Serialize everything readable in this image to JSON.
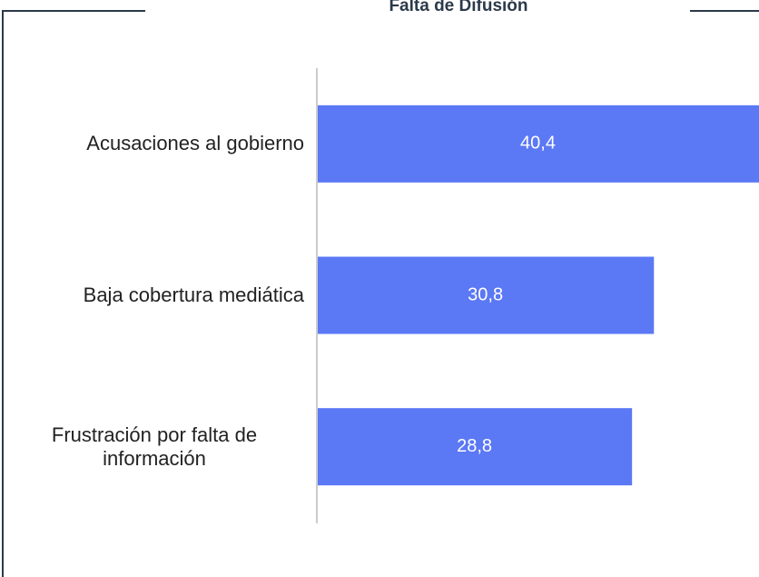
{
  "chart_data": {
    "type": "bar",
    "orientation": "horizontal",
    "title": "Falta de Difusión",
    "categories": [
      "Acusaciones al gobierno",
      "Baja cobertura mediática",
      "Frustración por falta de información"
    ],
    "values": [
      40.4,
      30.8,
      28.8
    ],
    "value_labels": [
      "40,4",
      "30,8",
      "28,8"
    ],
    "color": "#5b78f5"
  }
}
